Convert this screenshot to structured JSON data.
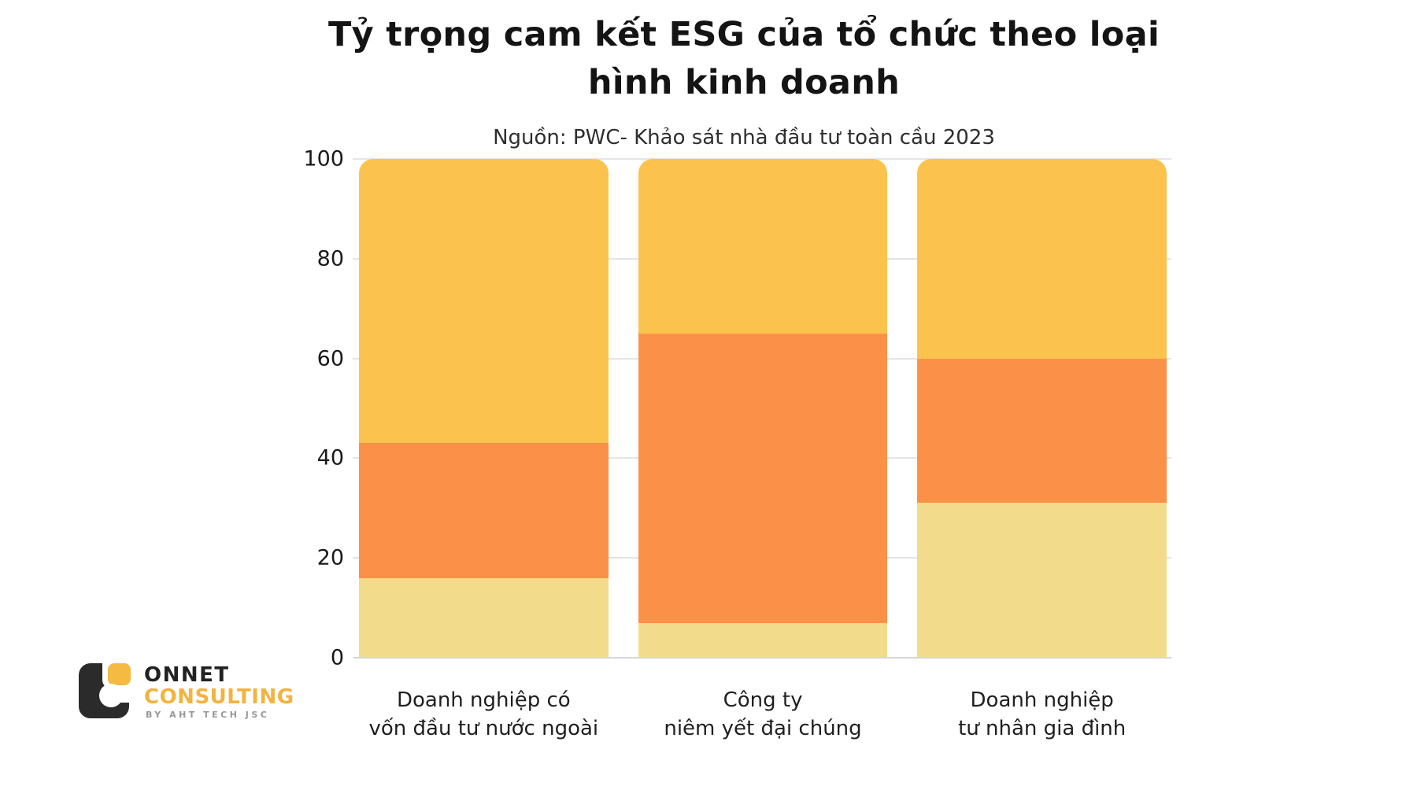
{
  "title": "Tỷ trọng cam kết ESG của tổ chức theo loại\nhình kinh doanh",
  "source": "Nguồn: PWC- Khảo sát nhà đầu tư toàn cầu 2023",
  "chart_data": {
    "type": "bar",
    "stacked": true,
    "orientation": "vertical",
    "title": "Tỷ trọng cam kết ESG của tổ chức theo loại hình kinh doanh",
    "subtitle": "Nguồn: PWC- Khảo sát nhà đầu tư toàn cầu 2023",
    "categories": [
      [
        "Doanh nghiệp có",
        "vốn đầu tư nước ngoài"
      ],
      [
        "Công ty",
        "niêm yết đại chúng"
      ],
      [
        "Doanh nghiệp",
        "tư nhân gia đình"
      ]
    ],
    "series": [
      {
        "name": "bottom-segment",
        "color": "#F2DC8C",
        "values": [
          16,
          7,
          31
        ]
      },
      {
        "name": "middle-segment",
        "color": "#FB9149",
        "values": [
          27,
          58,
          29
        ]
      },
      {
        "name": "top-segment",
        "color": "#FBC34E",
        "values": [
          57,
          35,
          40
        ]
      }
    ],
    "ylim": [
      0,
      100
    ],
    "yticks": [
      0,
      20,
      40,
      60,
      80,
      100
    ],
    "grid": true,
    "legend": "none"
  },
  "logo": {
    "brand": "ONNET",
    "brand2": "CONSULTING",
    "tagline": "BY AHT TECH JSC",
    "brand2_color": "#F2B340",
    "mark_dark_color": "#2b2b2b",
    "mark_yellow_color": "#F5BA41"
  },
  "colors": {
    "background": "#ffffff",
    "grid": "#e4e4e4",
    "axis_line": "#d6d6d6",
    "text": "#1a1a1a"
  }
}
